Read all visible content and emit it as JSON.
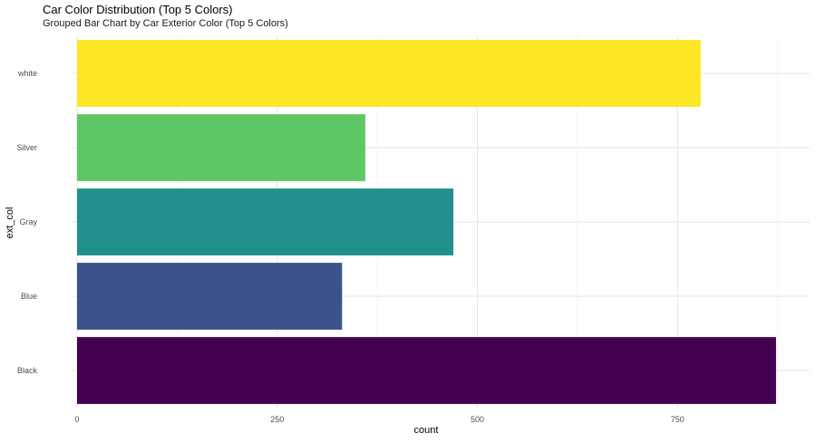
{
  "chart_data": {
    "type": "bar",
    "orientation": "horizontal",
    "title": "Car Color Distribution (Top 5 Colors)",
    "subtitle": "Grouped Bar Chart by Car Exterior Color (Top 5 Colors)",
    "xlabel": "count",
    "ylabel": "ext_col",
    "categories": [
      "Black",
      "Blue",
      "Gray",
      "Silver",
      "white"
    ],
    "values": [
      873,
      331,
      470,
      360,
      779
    ],
    "colors": [
      "#440154",
      "#3B528B",
      "#21908C",
      "#5DC863",
      "#FDE725"
    ],
    "xlim": [
      0,
      915
    ],
    "xticks": [
      0,
      250,
      500,
      750
    ],
    "xtick_labels": [
      "0",
      "250",
      "500",
      "750"
    ],
    "grid": true,
    "legend": "none"
  }
}
